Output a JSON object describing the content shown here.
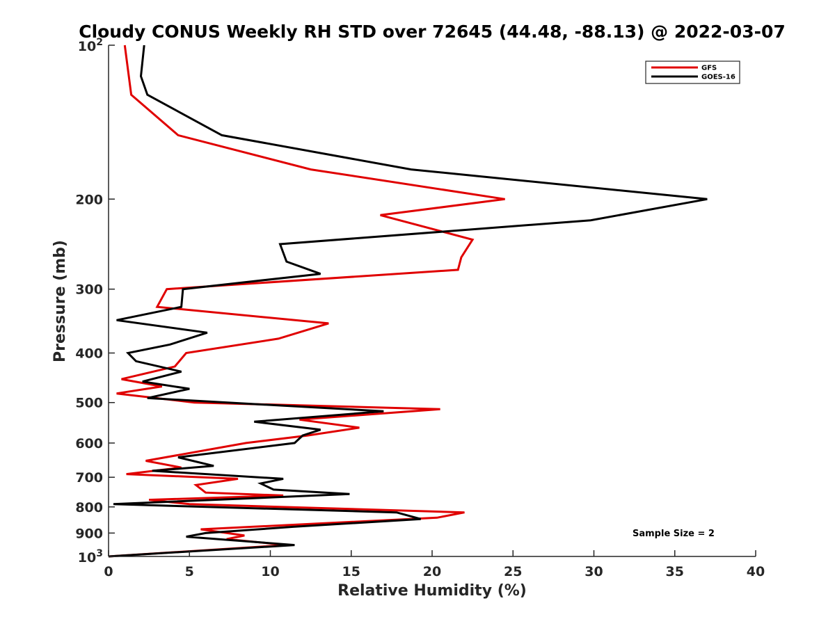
{
  "chart_data": {
    "type": "line",
    "title": "Cloudy CONUS Weekly RH STD over 72645 (44.48, -88.13) @ 2022-03-07",
    "xlabel": "Relative Humidity (%)",
    "ylabel": "Pressure (mb)",
    "xlim": [
      0,
      40
    ],
    "ylim": [
      100,
      1000
    ],
    "y_scale": "log",
    "y_reversed": true,
    "grid": false,
    "legend_position": "top-right",
    "x_ticks": [
      "0",
      "5",
      "10",
      "15",
      "20",
      "25",
      "30",
      "35",
      "40"
    ],
    "y_ticks": [
      {
        "value": 100,
        "base": "10",
        "exp": "2"
      },
      {
        "value": 200,
        "label": "200"
      },
      {
        "value": 300,
        "label": "300"
      },
      {
        "value": 400,
        "label": "400"
      },
      {
        "value": 500,
        "label": "500"
      },
      {
        "value": 600,
        "label": "600"
      },
      {
        "value": 700,
        "label": "700"
      },
      {
        "value": 800,
        "label": "800"
      },
      {
        "value": 900,
        "label": "900"
      },
      {
        "value": 1000,
        "base": "10",
        "exp": "3"
      }
    ],
    "series": [
      {
        "name": "GFS",
        "color": "#e00000",
        "points": [
          [
            1.0,
            100
          ],
          [
            1.4,
            125
          ],
          [
            4.3,
            150
          ],
          [
            12.5,
            175
          ],
          [
            24.5,
            200
          ],
          [
            16.8,
            215
          ],
          [
            22.5,
            240
          ],
          [
            21.8,
            260
          ],
          [
            21.6,
            275
          ],
          [
            3.6,
            300
          ],
          [
            3.0,
            325
          ],
          [
            13.6,
            350
          ],
          [
            10.5,
            375
          ],
          [
            4.8,
            400
          ],
          [
            4.1,
            425
          ],
          [
            0.8,
            450
          ],
          [
            3.3,
            465
          ],
          [
            0.5,
            480
          ],
          [
            5.3,
            500
          ],
          [
            20.5,
            515
          ],
          [
            11.8,
            540
          ],
          [
            15.5,
            560
          ],
          [
            12.3,
            580
          ],
          [
            8.5,
            600
          ],
          [
            2.3,
            650
          ],
          [
            4.5,
            670
          ],
          [
            1.1,
            690
          ],
          [
            8.0,
            705
          ],
          [
            5.4,
            725
          ],
          [
            6.0,
            750
          ],
          [
            10.8,
            760
          ],
          [
            2.5,
            775
          ],
          [
            5.0,
            790
          ],
          [
            22.0,
            820
          ],
          [
            20.3,
            840
          ],
          [
            5.7,
            885
          ],
          [
            8.4,
            910
          ],
          [
            7.3,
            925
          ],
          [
            11.0,
            950
          ],
          [
            0.0,
            1000
          ]
        ]
      },
      {
        "name": "GOES-16",
        "color": "#000000",
        "points": [
          [
            2.2,
            100
          ],
          [
            2.0,
            115
          ],
          [
            2.4,
            125
          ],
          [
            7.0,
            150
          ],
          [
            18.7,
            175
          ],
          [
            37.0,
            200
          ],
          [
            29.8,
            220
          ],
          [
            10.6,
            245
          ],
          [
            11.0,
            265
          ],
          [
            13.1,
            280
          ],
          [
            4.6,
            300
          ],
          [
            4.5,
            325
          ],
          [
            0.5,
            345
          ],
          [
            6.1,
            365
          ],
          [
            3.8,
            385
          ],
          [
            1.2,
            400
          ],
          [
            1.7,
            415
          ],
          [
            4.5,
            435
          ],
          [
            2.1,
            455
          ],
          [
            5.0,
            470
          ],
          [
            2.4,
            490
          ],
          [
            17.0,
            520
          ],
          [
            9.0,
            545
          ],
          [
            13.1,
            565
          ],
          [
            12.0,
            580
          ],
          [
            11.5,
            600
          ],
          [
            4.3,
            640
          ],
          [
            6.5,
            665
          ],
          [
            2.7,
            680
          ],
          [
            10.8,
            705
          ],
          [
            9.4,
            720
          ],
          [
            10.2,
            740
          ],
          [
            14.9,
            755
          ],
          [
            0.3,
            790
          ],
          [
            17.8,
            820
          ],
          [
            19.3,
            845
          ],
          [
            11.4,
            875
          ],
          [
            6.0,
            900
          ],
          [
            4.8,
            915
          ],
          [
            11.5,
            950
          ],
          [
            0.0,
            1000
          ]
        ]
      }
    ],
    "annotation": "Sample Size = 2"
  }
}
